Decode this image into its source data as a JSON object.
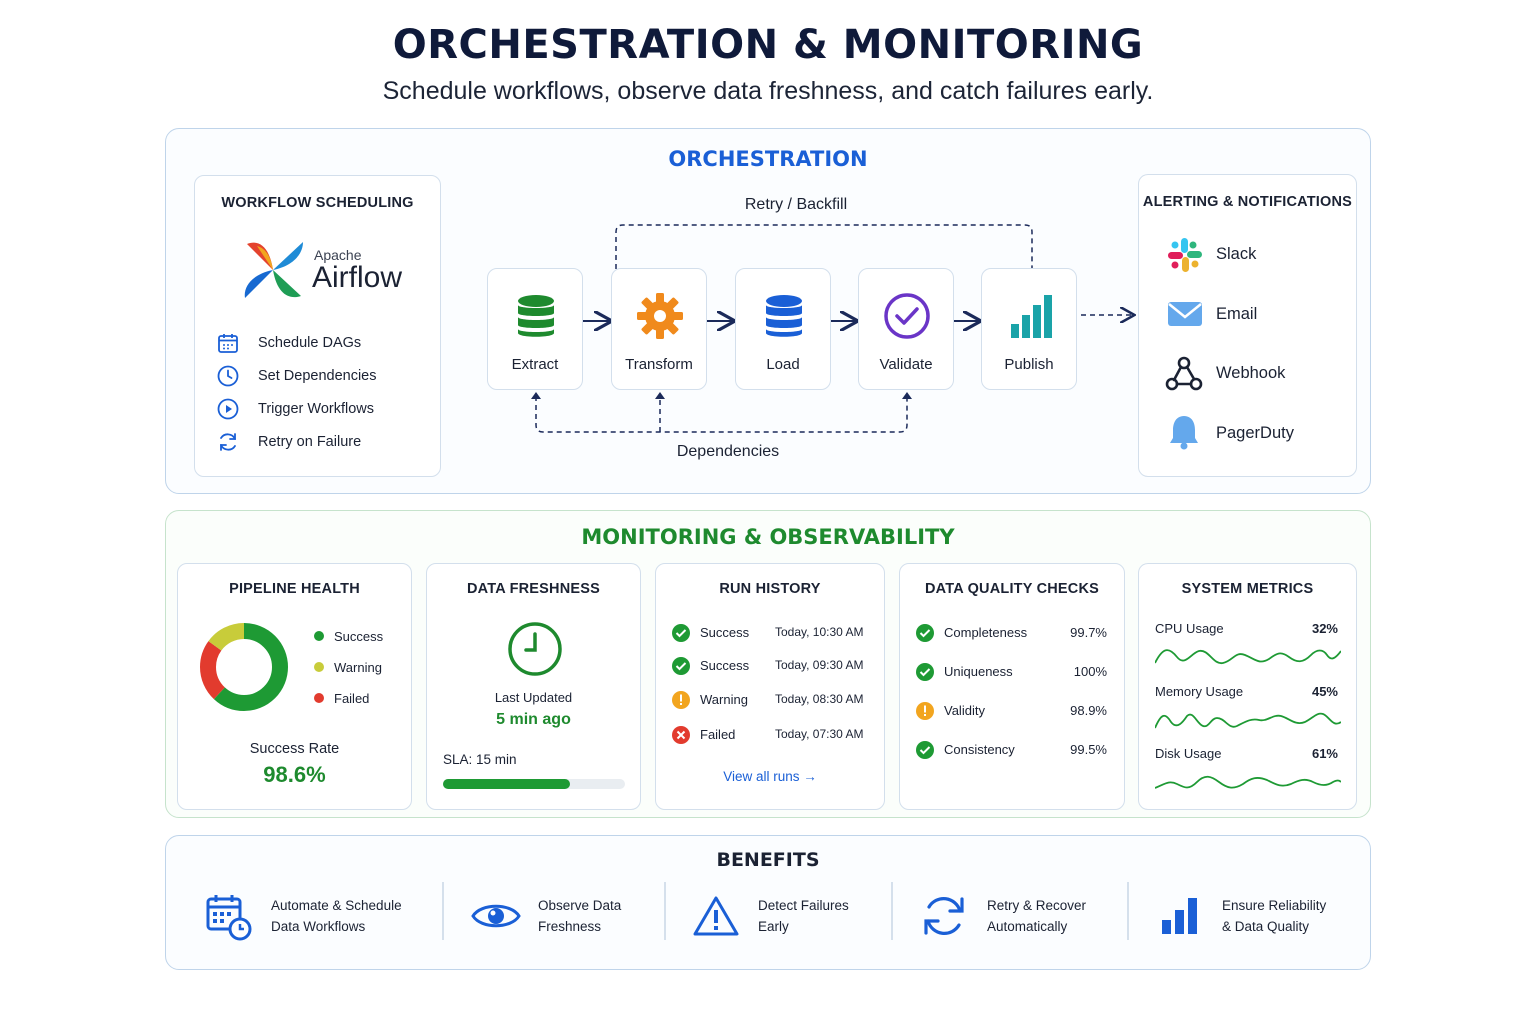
{
  "header": {
    "title": "ORCHESTRATION & MONITORING",
    "subtitle": "Schedule workflows, observe data freshness, and catch failures early."
  },
  "colors": {
    "blue": "#1a5fd6",
    "green": "#1e8a2e",
    "orange": "#f08a1c",
    "purple": "#6a35c7",
    "teal": "#1aa3a8",
    "red": "#e23b2e",
    "yellow": "#c8cc3a"
  },
  "orchestration": {
    "title": "ORCHESTRATION",
    "scheduling": {
      "title": "WORKFLOW SCHEDULING",
      "logo_small": "Apache",
      "logo_big": "Airflow",
      "items": [
        {
          "icon": "calendar-icon",
          "label": "Schedule DAGs"
        },
        {
          "icon": "clock-icon",
          "label": "Set Dependencies"
        },
        {
          "icon": "play-icon",
          "label": "Trigger Workflows"
        },
        {
          "icon": "retry-icon",
          "label": "Retry on Failure"
        }
      ]
    },
    "pipeline": {
      "retry_label": "Retry / Backfill",
      "dependencies_label": "Dependencies",
      "steps": [
        {
          "icon": "database-icon",
          "label": "Extract"
        },
        {
          "icon": "gear-icon",
          "label": "Transform"
        },
        {
          "icon": "database-icon",
          "label": "Load"
        },
        {
          "icon": "check-circle-icon",
          "label": "Validate"
        },
        {
          "icon": "bar-chart-icon",
          "label": "Publish"
        }
      ]
    },
    "alerting": {
      "title": "ALERTING & NOTIFICATIONS",
      "items": [
        {
          "icon": "slack-icon",
          "label": "Slack"
        },
        {
          "icon": "email-icon",
          "label": "Email"
        },
        {
          "icon": "webhook-icon",
          "label": "Webhook"
        },
        {
          "icon": "bell-icon",
          "label": "PagerDuty"
        }
      ]
    }
  },
  "monitoring": {
    "title": "MONITORING & OBSERVABILITY",
    "health": {
      "title": "PIPELINE HEALTH",
      "legend": [
        "Success",
        "Warning",
        "Failed"
      ],
      "rate_label": "Success Rate",
      "rate_value": "98.6%"
    },
    "freshness": {
      "title": "DATA FRESHNESS",
      "last_updated_label": "Last Updated",
      "last_updated_value": "5 min ago",
      "sla_label": "SLA: 15 min",
      "progress": 0.7
    },
    "runs": {
      "title": "RUN HISTORY",
      "rows": [
        {
          "status": "Success",
          "time": "Today, 10:30 AM"
        },
        {
          "status": "Success",
          "time": "Today, 09:30 AM"
        },
        {
          "status": "Warning",
          "time": "Today, 08:30 AM"
        },
        {
          "status": "Failed",
          "time": "Today, 07:30 AM"
        }
      ],
      "link": "View all runs →"
    },
    "quality": {
      "title": "DATA QUALITY CHECKS",
      "rows": [
        {
          "label": "Completeness",
          "value": "99.7%",
          "status": "ok"
        },
        {
          "label": "Uniqueness",
          "value": "100%",
          "status": "ok"
        },
        {
          "label": "Validity",
          "value": "98.9%",
          "status": "warn"
        },
        {
          "label": "Consistency",
          "value": "99.5%",
          "status": "ok"
        }
      ]
    },
    "metrics": {
      "title": "SYSTEM METRICS",
      "rows": [
        {
          "label": "CPU Usage",
          "value": "32%"
        },
        {
          "label": "Memory Usage",
          "value": "45%"
        },
        {
          "label": "Disk Usage",
          "value": "61%"
        }
      ]
    }
  },
  "benefits": {
    "title": "BENEFITS",
    "items": [
      {
        "icon": "calendar-clock-icon",
        "line1": "Automate & Schedule",
        "line2": "Data Workflows"
      },
      {
        "icon": "eye-icon",
        "line1": "Observe Data",
        "line2": "Freshness"
      },
      {
        "icon": "warning-icon",
        "line1": "Detect Failures",
        "line2": "Early"
      },
      {
        "icon": "refresh-icon",
        "line1": "Retry & Recover",
        "line2": "Automatically"
      },
      {
        "icon": "bar-chart-icon",
        "line1": "Ensure Reliability",
        "line2": "& Data Quality"
      }
    ]
  }
}
